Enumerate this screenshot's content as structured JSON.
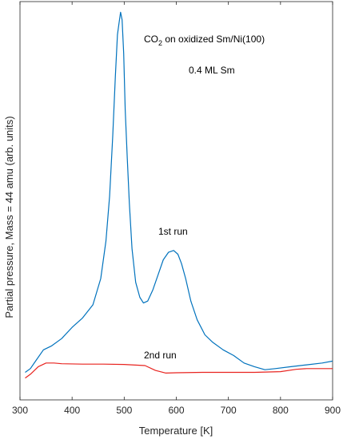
{
  "chart_data": {
    "type": "line",
    "title": "",
    "xlabel": "Temperature [K]",
    "ylabel": "Partial pressure, Mass = 44 amu (arb. units)",
    "xlim": [
      300,
      900
    ],
    "ylim": [
      0,
      100
    ],
    "y_ticks_shown": false,
    "grid": false,
    "x_ticks": [
      "300",
      "400",
      "500",
      "600",
      "700",
      "800",
      "900"
    ],
    "annotations": {
      "title_prefix": "CO",
      "title_sub": "2",
      "title_suffix": " on oxidized Sm/Ni(100)",
      "coverage": "0.4 ML Sm",
      "run1": "1st run",
      "run2": "2nd run"
    },
    "series": [
      {
        "name": "1st run",
        "color": "#0072BD",
        "x": [
          310,
          320,
          330,
          345,
          360,
          380,
          400,
          420,
          440,
          455,
          465,
          472,
          478,
          483,
          487,
          490,
          493,
          496,
          499,
          502,
          506,
          510,
          515,
          522,
          530,
          537,
          545,
          555,
          565,
          575,
          585,
          595,
          603,
          610,
          618,
          628,
          640,
          655,
          670,
          690,
          710,
          730,
          750,
          770,
          790,
          820,
          850,
          880,
          900
        ],
        "y": [
          5,
          6,
          8,
          11,
          12,
          14,
          17,
          19.5,
          23,
          30,
          40,
          52,
          68,
          84,
          95,
          98,
          101,
          99,
          90,
          75,
          62,
          50,
          38,
          29,
          25,
          23.5,
          24,
          27,
          31,
          35,
          37,
          37.5,
          36.5,
          34,
          30,
          24,
          19,
          15,
          13,
          11,
          9.5,
          7.5,
          6.5,
          5.7,
          6,
          6.5,
          7,
          7.5,
          8
        ]
      },
      {
        "name": "2nd run",
        "color": "#E8231F",
        "x": [
          310,
          320,
          335,
          350,
          365,
          380,
          420,
          460,
          500,
          540,
          560,
          580,
          600,
          650,
          700,
          750,
          800,
          830,
          850,
          870,
          900
        ],
        "y": [
          3.5,
          4.5,
          6.5,
          7.5,
          7.5,
          7.3,
          7.2,
          7.2,
          7.1,
          6.8,
          5.5,
          4.8,
          4.9,
          5,
          5,
          5,
          5.2,
          5.8,
          6,
          6,
          6
        ]
      }
    ]
  }
}
